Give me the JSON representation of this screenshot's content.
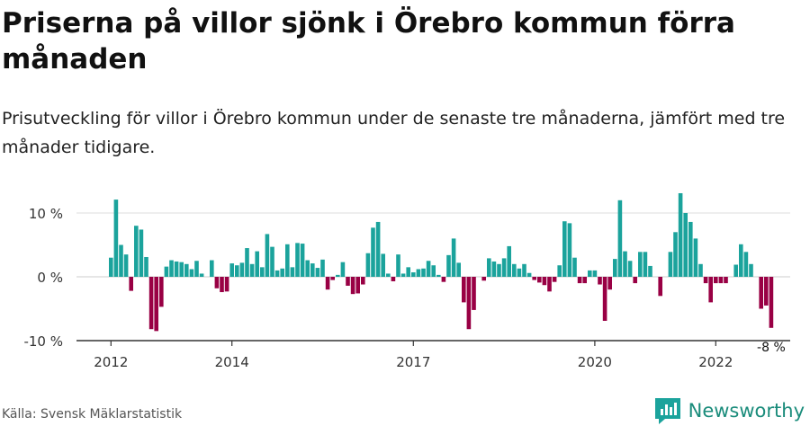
{
  "header": {
    "title": "Priserna på villor sjönk i Örebro kommun förra månaden",
    "subtitle": "Prisutveckling för villor i Örebro kommun under de senaste tre månaderna, jämfört med tre månader tidigare."
  },
  "footer": {
    "source": "Källa: Svensk Mäklarstatistik",
    "brand": "Newsworthy"
  },
  "colors": {
    "positive": "#1ba39c",
    "negative": "#990044",
    "grid": "#dddddd",
    "axis": "#333333"
  },
  "chart_data": {
    "type": "bar",
    "title": "Priserna på villor sjönk i Örebro kommun förra månaden",
    "xlabel": "",
    "ylabel": "",
    "ylim": [
      -10,
      14
    ],
    "yticks": [
      10,
      0,
      -10
    ],
    "ytick_labels": [
      "10 %",
      "0 %",
      "-10 %"
    ],
    "x_start": "2012-01",
    "xtick_labels": [
      {
        "label": "2012",
        "index": 0
      },
      {
        "label": "2014",
        "index": 24
      },
      {
        "label": "2017",
        "index": 60
      },
      {
        "label": "2020",
        "index": 96
      },
      {
        "label": "2022",
        "index": 120
      }
    ],
    "last_value_label": "-8 %",
    "values": [
      3,
      12.1,
      5,
      3.5,
      -2.2,
      8,
      7.4,
      3.1,
      -8.2,
      -8.5,
      -4.7,
      1.6,
      2.6,
      2.4,
      2.3,
      2,
      1.2,
      2.5,
      0.5,
      0,
      2.6,
      -1.8,
      -2.4,
      -2.3,
      2.1,
      1.8,
      2.2,
      4.5,
      2,
      4,
      1.5,
      6.7,
      4.7,
      1,
      1.3,
      5.1,
      1.5,
      5.3,
      5.2,
      2.6,
      2.1,
      1.4,
      2.7,
      -2,
      -0.5,
      0.3,
      2.3,
      -1.4,
      -2.7,
      -2.6,
      -1.2,
      3.7,
      7.7,
      8.6,
      3.6,
      0.5,
      -0.7,
      3.5,
      0.5,
      1.5,
      0.7,
      1.2,
      1.3,
      2.5,
      1.8,
      0.3,
      -0.8,
      3.4,
      6,
      2.2,
      -4,
      -8.2,
      -5.2,
      0,
      -0.6,
      2.9,
      2.4,
      2,
      2.9,
      4.8,
      2,
      1.3,
      2,
      0.6,
      -0.5,
      -0.9,
      -1.3,
      -2.3,
      -0.8,
      1.8,
      8.7,
      8.4,
      3,
      -1,
      -1,
      1,
      1,
      -1.2,
      -6.9,
      -2,
      2.8,
      12,
      4,
      2.5,
      -1,
      3.9,
      3.9,
      1.7,
      0,
      -3,
      0,
      3.9,
      7,
      13.1,
      10,
      8.6,
      6,
      2,
      -1,
      -4,
      -1,
      -1,
      -1,
      0,
      1.9,
      5.1,
      3.9,
      2,
      0,
      -5,
      -4.5,
      -8
    ]
  }
}
